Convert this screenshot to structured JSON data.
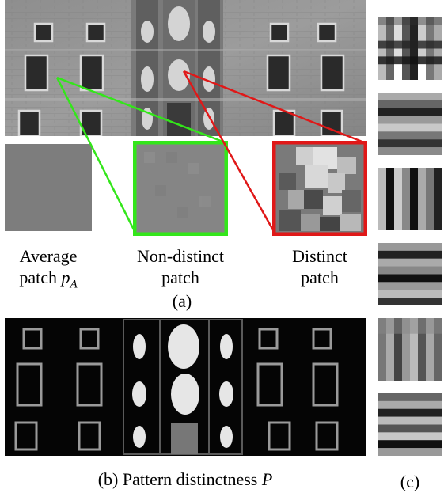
{
  "figure": {
    "caption_a": "(a)",
    "caption_b_text": "(b) Pattern distinctness",
    "caption_b_math": "P",
    "caption_c": "(c)",
    "patches": {
      "average_line1": "Average",
      "average_line2_text": "patch",
      "average_math": "p",
      "average_sub": "A",
      "nondistinct_line1": "Non-distinct",
      "nondistinct_line2": "patch",
      "distinct_line1": "Distinct",
      "distinct_line2": "patch"
    },
    "colors": {
      "nondistinct_box": "#33e61a",
      "distinct_box": "#e01818",
      "average_patch": "#7d7d7d"
    }
  }
}
